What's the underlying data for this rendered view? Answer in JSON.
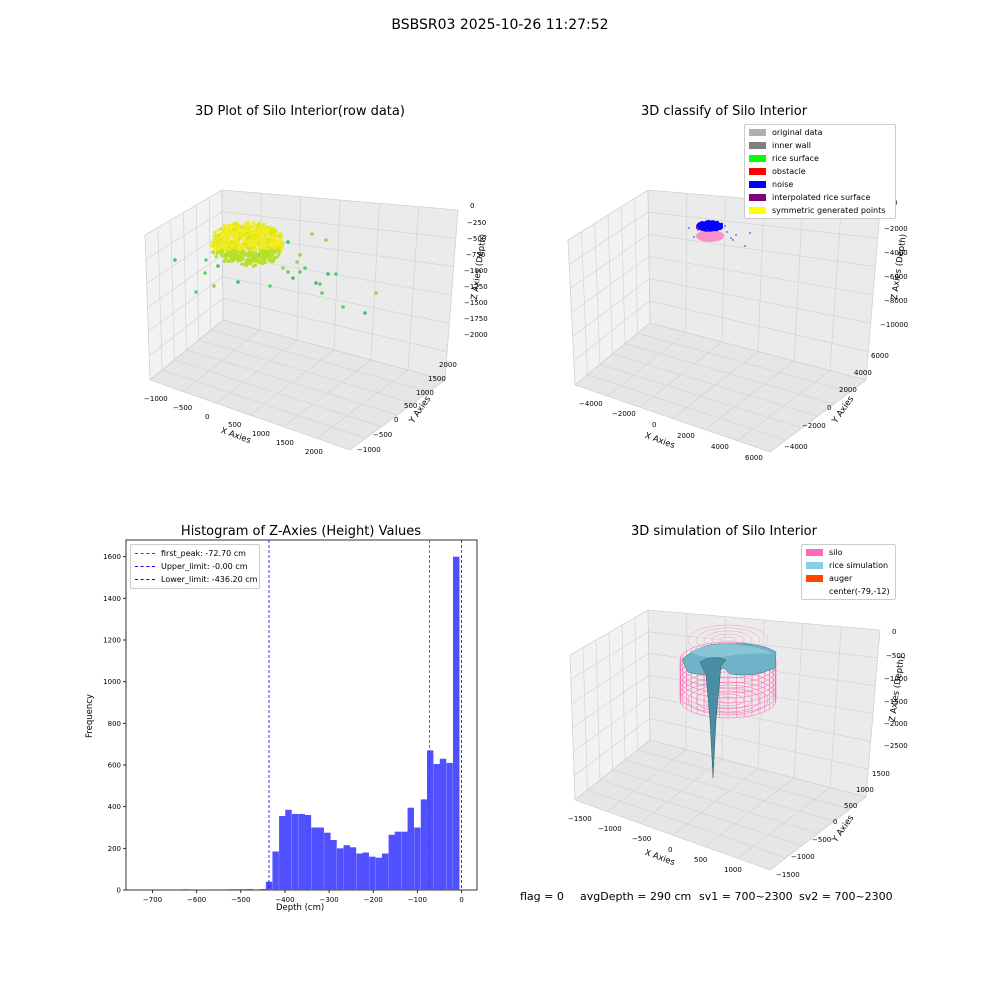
{
  "suptitle": "BSBSR03 2025-10-26 11:27:52",
  "plot1": {
    "title": "3D Plot of Silo Interior(row data)",
    "x_ticks": [
      "−1000",
      "−500",
      "0",
      "500",
      "1000",
      "1500",
      "2000"
    ],
    "y_ticks": [
      "−1000",
      "−500",
      "0",
      "500",
      "1000",
      "1500",
      "2000"
    ],
    "z_ticks": [
      "0",
      "−250",
      "−500",
      "−750",
      "−1000",
      "−1250",
      "−1500",
      "−1750",
      "−2000"
    ],
    "xlabel": "X Axies",
    "ylabel": "Y Axies",
    "zlabel": "Z Axies (Depth)"
  },
  "plot2": {
    "title": "3D classify of Silo Interior",
    "x_ticks": [
      "−4000",
      "−2000",
      "0",
      "2000",
      "4000",
      "6000"
    ],
    "y_ticks": [
      "−4000",
      "−2000",
      "0",
      "2000",
      "4000",
      "6000"
    ],
    "z_ticks": [
      "0",
      "−2000",
      "−4000",
      "−6000",
      "−8000",
      "−10000"
    ],
    "xlabel": "X Axies",
    "ylabel": "Y Axies",
    "zlabel": "Z Axies (Depth)",
    "legend": [
      {
        "label": "original data",
        "color": "#b0b0b0"
      },
      {
        "label": "inner wall",
        "color": "#808080"
      },
      {
        "label": "rice surface",
        "color": "#00ff00"
      },
      {
        "label": "obstacle",
        "color": "#ff0000"
      },
      {
        "label": "noise",
        "color": "#0000ff"
      },
      {
        "label": "interpolated rice surface",
        "color": "#800080"
      },
      {
        "label": "symmetric generated points",
        "color": "#ffff00"
      }
    ]
  },
  "plot4": {
    "title": "3D simulation of Silo Interior",
    "x_ticks": [
      "−1500",
      "−1000",
      "−500",
      "0",
      "500",
      "1000"
    ],
    "y_ticks": [
      "−1500",
      "−1000",
      "−500",
      "0",
      "500",
      "1000",
      "1500"
    ],
    "z_ticks": [
      "0",
      "−500",
      "−1000",
      "−1500",
      "−2000",
      "−2500"
    ],
    "xlabel": "X Axies",
    "ylabel": "Y Axies",
    "zlabel": "Z Axies (Depth)",
    "legend": [
      {
        "label": "silo",
        "color": "#ff69b4"
      },
      {
        "label": "rice simulation",
        "color": "#87ceeb"
      },
      {
        "label": "auger",
        "color": "#ff4500"
      },
      {
        "label": "center(-79,-12)",
        "color": ""
      }
    ]
  },
  "chart_data": {
    "type": "bar",
    "title": "Histogram of Z-Axies (Height) Values",
    "xlabel": "Depth (cm)",
    "ylabel": "Frequency",
    "xlim": [
      -760,
      35
    ],
    "ylim": [
      0,
      1680
    ],
    "x_ticks": [
      -700,
      -600,
      -500,
      -400,
      -300,
      -200,
      -100,
      0
    ],
    "y_ticks": [
      0,
      200,
      400,
      600,
      800,
      1000,
      1200,
      1400,
      1600
    ],
    "x_tick_labels": [
      "−700",
      "−600",
      "−500",
      "−400",
      "−300",
      "−200",
      "−100",
      "0"
    ],
    "bin_width": 14.6,
    "bins": [
      {
        "x": -625,
        "v": 4
      },
      {
        "x": -596,
        "v": 3
      },
      {
        "x": -581,
        "v": 3
      },
      {
        "x": -523,
        "v": 4
      },
      {
        "x": -508,
        "v": 4
      },
      {
        "x": -494,
        "v": 4
      },
      {
        "x": -479,
        "v": 5
      },
      {
        "x": -450,
        "v": 5
      },
      {
        "x": -436,
        "v": 40
      },
      {
        "x": -421,
        "v": 185
      },
      {
        "x": -406,
        "v": 355
      },
      {
        "x": -392,
        "v": 385
      },
      {
        "x": -377,
        "v": 365
      },
      {
        "x": -362,
        "v": 365
      },
      {
        "x": -348,
        "v": 360
      },
      {
        "x": -333,
        "v": 300
      },
      {
        "x": -319,
        "v": 300
      },
      {
        "x": -304,
        "v": 275
      },
      {
        "x": -290,
        "v": 240
      },
      {
        "x": -275,
        "v": 200
      },
      {
        "x": -260,
        "v": 215
      },
      {
        "x": -246,
        "v": 205
      },
      {
        "x": -231,
        "v": 175
      },
      {
        "x": -217,
        "v": 180
      },
      {
        "x": -202,
        "v": 160
      },
      {
        "x": -187,
        "v": 155
      },
      {
        "x": -173,
        "v": 175
      },
      {
        "x": -158,
        "v": 265
      },
      {
        "x": -144,
        "v": 280
      },
      {
        "x": -129,
        "v": 280
      },
      {
        "x": -115,
        "v": 395
      },
      {
        "x": -100,
        "v": 300
      },
      {
        "x": -85,
        "v": 435
      },
      {
        "x": -71,
        "v": 670
      },
      {
        "x": -56,
        "v": 605
      },
      {
        "x": -42,
        "v": 630
      },
      {
        "x": -27,
        "v": 610
      },
      {
        "x": -12,
        "v": 1600
      }
    ],
    "series": [
      {
        "name": "Z-Axies (Height) Values",
        "color": "#5050ff"
      }
    ],
    "vlines": [
      {
        "label": "first_peak: -72.70 cm",
        "x": -72.7,
        "color": "#ff0000"
      },
      {
        "label": "Upper_limit: -0.00 cm",
        "x": 0,
        "color": "#0000ff"
      },
      {
        "label": "Lower_limit: -436.20 cm",
        "x": -436.2,
        "color": "#0000ff"
      }
    ],
    "legend_position": "upper left"
  },
  "footer": {
    "flag": "flag = 0",
    "avg": "avgDepth = 290 cm",
    "sv1": "sv1 = 700~2300",
    "sv2": "sv2 = 700~2300"
  }
}
